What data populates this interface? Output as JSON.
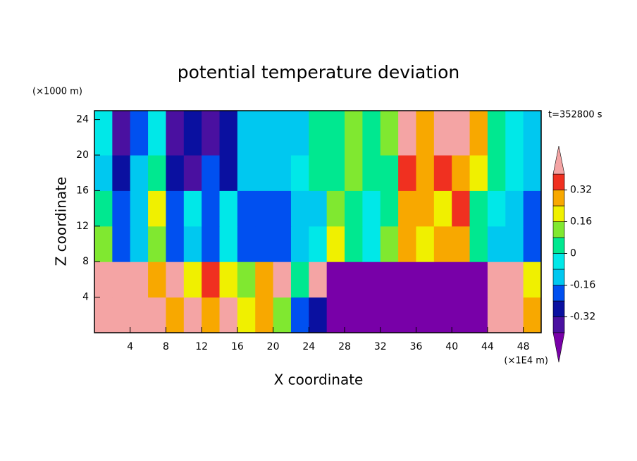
{
  "chart_data": {
    "type": "contour",
    "title": "potential temperature deviation",
    "y_unit": "(×1000 m)",
    "y_label": "Z coordinate",
    "x_label": "X coordinate",
    "x_unit": "(×1E4 m)",
    "time_label": "t=352800 s",
    "xlim": [
      0,
      50
    ],
    "ylim": [
      0,
      25
    ],
    "xticks": [
      4,
      8,
      12,
      16,
      20,
      24,
      28,
      32,
      36,
      40,
      44,
      48
    ],
    "yticks": [
      4,
      8,
      12,
      16,
      20,
      24
    ],
    "x": [
      1,
      3,
      5,
      7,
      9,
      11,
      13,
      15,
      17,
      19,
      21,
      23,
      25,
      27,
      29,
      31,
      33,
      35,
      37,
      39,
      41,
      43,
      45,
      47,
      49
    ],
    "y": [
      2,
      6,
      10,
      14,
      18,
      22
    ],
    "z": [
      [
        0.45,
        0.45,
        0.45,
        0.45,
        0.3,
        0.45,
        0.3,
        0.45,
        0.2,
        0.3,
        0.1,
        -0.2,
        -0.3,
        -0.45,
        -0.45,
        -0.45,
        -0.45,
        -0.45,
        -0.45,
        -0.45,
        -0.45,
        -0.45,
        0.45,
        0.45,
        0.3
      ],
      [
        0.45,
        0.45,
        0.45,
        0.3,
        0.45,
        0.2,
        0.35,
        0.2,
        0.1,
        0.3,
        0.45,
        0,
        0.45,
        -0.45,
        -0.45,
        -0.45,
        -0.45,
        -0.45,
        -0.45,
        -0.45,
        -0.45,
        -0.45,
        0.45,
        0.45,
        0.2
      ],
      [
        0.1,
        -0.2,
        -0.1,
        0.15,
        -0.2,
        -0.1,
        -0.2,
        -0.05,
        -0.2,
        -0.2,
        -0.2,
        -0.12,
        -0.05,
        0.2,
        0.05,
        -0.05,
        0.1,
        0.3,
        0.2,
        0.25,
        0.3,
        0,
        -0.1,
        -0.12,
        -0.2
      ],
      [
        0.05,
        -0.2,
        -0.1,
        0.2,
        -0.2,
        -0.05,
        -0.2,
        -0.05,
        -0.2,
        -0.2,
        -0.2,
        -0.15,
        -0.1,
        0.1,
        0.05,
        -0.05,
        0.05,
        0.3,
        0.25,
        0.2,
        0.35,
        0,
        -0.05,
        -0.1,
        -0.2
      ],
      [
        -0.1,
        -0.3,
        -0.15,
        0,
        -0.25,
        -0.35,
        -0.2,
        -0.3,
        -0.1,
        -0.12,
        -0.12,
        -0.05,
        0,
        0.05,
        0.1,
        0,
        0.05,
        0.35,
        0.3,
        0.35,
        0.3,
        0.2,
        0,
        -0.05,
        -0.1
      ],
      [
        -0.05,
        -0.35,
        -0.2,
        -0.05,
        -0.35,
        -0.25,
        -0.35,
        -0.25,
        -0.1,
        -0.12,
        -0.12,
        -0.1,
        0,
        0,
        0.1,
        0,
        0.1,
        0.45,
        0.3,
        0.45,
        0.45,
        0.25,
        0.05,
        -0.05,
        -0.15
      ]
    ],
    "levels": [
      -0.4,
      -0.32,
      -0.24,
      -0.16,
      -0.08,
      0,
      0.08,
      0.16,
      0.24,
      0.32,
      0.4
    ],
    "colors": [
      "#7800a8",
      "#4a10a0",
      "#0a10a0",
      "#0050f0",
      "#00c8f0",
      "#00e8e8",
      "#00e890",
      "#80e830",
      "#f0f000",
      "#f8a800",
      "#f03020",
      "#f4a4a4"
    ],
    "colorbar_ticks": [
      -0.32,
      -0.16,
      0,
      0.16,
      0.32
    ]
  }
}
